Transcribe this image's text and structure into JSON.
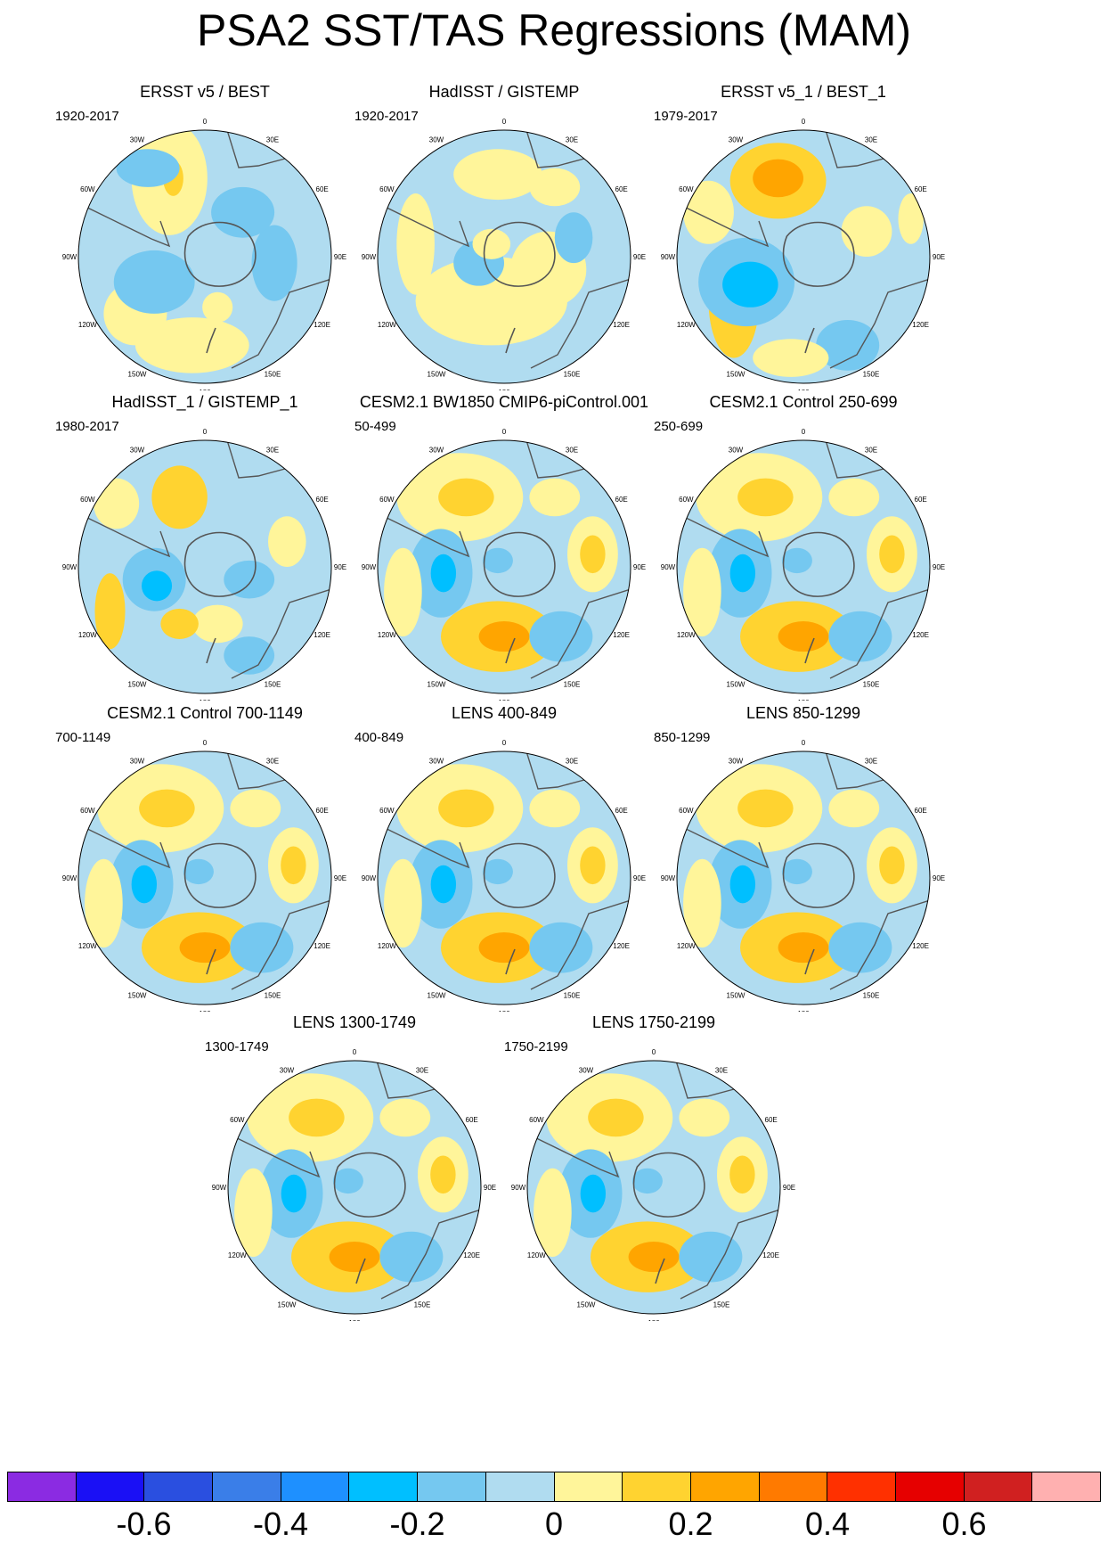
{
  "title": "PSA2 SST/TAS Regressions (MAM)",
  "lon_labels": [
    "0",
    "30E",
    "60E",
    "90E",
    "120E",
    "150E",
    "180",
    "150W",
    "120W",
    "90W",
    "60W",
    "30W"
  ],
  "panels": [
    {
      "title": "ERSST v5 / BEST",
      "period": "1920-2017",
      "pattern": "obs1"
    },
    {
      "title": "HadISST / GISTEMP",
      "period": "1920-2017",
      "pattern": "obs2"
    },
    {
      "title": "ERSST v5_1 / BEST_1",
      "period": "1979-2017",
      "pattern": "obs3"
    },
    {
      "title": "HadISST_1 / GISTEMP_1",
      "period": "1980-2017",
      "pattern": "obs4"
    },
    {
      "title": "CESM2.1 BW1850 CMIP6-piControl.001",
      "period": "50-499",
      "pattern": "model"
    },
    {
      "title": "CESM2.1 Control 250-699",
      "period": "250-699",
      "pattern": "model"
    },
    {
      "title": "CESM2.1 Control 700-1149",
      "period": "700-1149",
      "pattern": "model"
    },
    {
      "title": "LENS 400-849",
      "period": "400-849",
      "pattern": "model"
    },
    {
      "title": "LENS 850-1299",
      "period": "850-1299",
      "pattern": "model"
    },
    {
      "title": "LENS 1300-1749",
      "period": "1300-1749",
      "pattern": "model"
    },
    {
      "title": "LENS 1750-2199",
      "period": "1750-2199",
      "pattern": "model"
    }
  ],
  "colorbar": {
    "colors": [
      "#8b2be2",
      "#1a10f5",
      "#2a4fe0",
      "#3a7ee8",
      "#1e90ff",
      "#00bfff",
      "#75c8f0",
      "#b0dcf0",
      "#fff59a",
      "#ffd330",
      "#ffa500",
      "#ff7a00",
      "#ff3000",
      "#e60000",
      "#d02020",
      "#ffb0b0"
    ],
    "tick_labels": [
      "-0.6",
      "-0.4",
      "-0.2",
      "0",
      "0.2",
      "0.4",
      "0.6"
    ],
    "tick_values": [
      -0.6,
      -0.4,
      -0.2,
      0,
      0.2,
      0.4,
      0.6
    ],
    "min": -0.8,
    "max": 0.8
  }
}
